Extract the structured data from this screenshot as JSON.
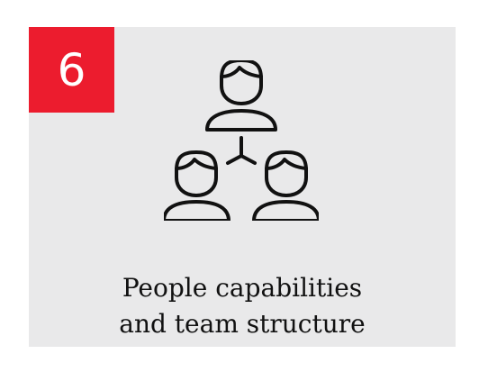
{
  "badge": {
    "number": "6",
    "color": "#ec1c2e"
  },
  "icon": {
    "name": "people-hierarchy-icon",
    "stroke_color": "#111111"
  },
  "title": {
    "line1": "People capabilities",
    "line2": "and team structure"
  },
  "colors": {
    "card_background": "#e9e9ea",
    "text": "#111111"
  }
}
